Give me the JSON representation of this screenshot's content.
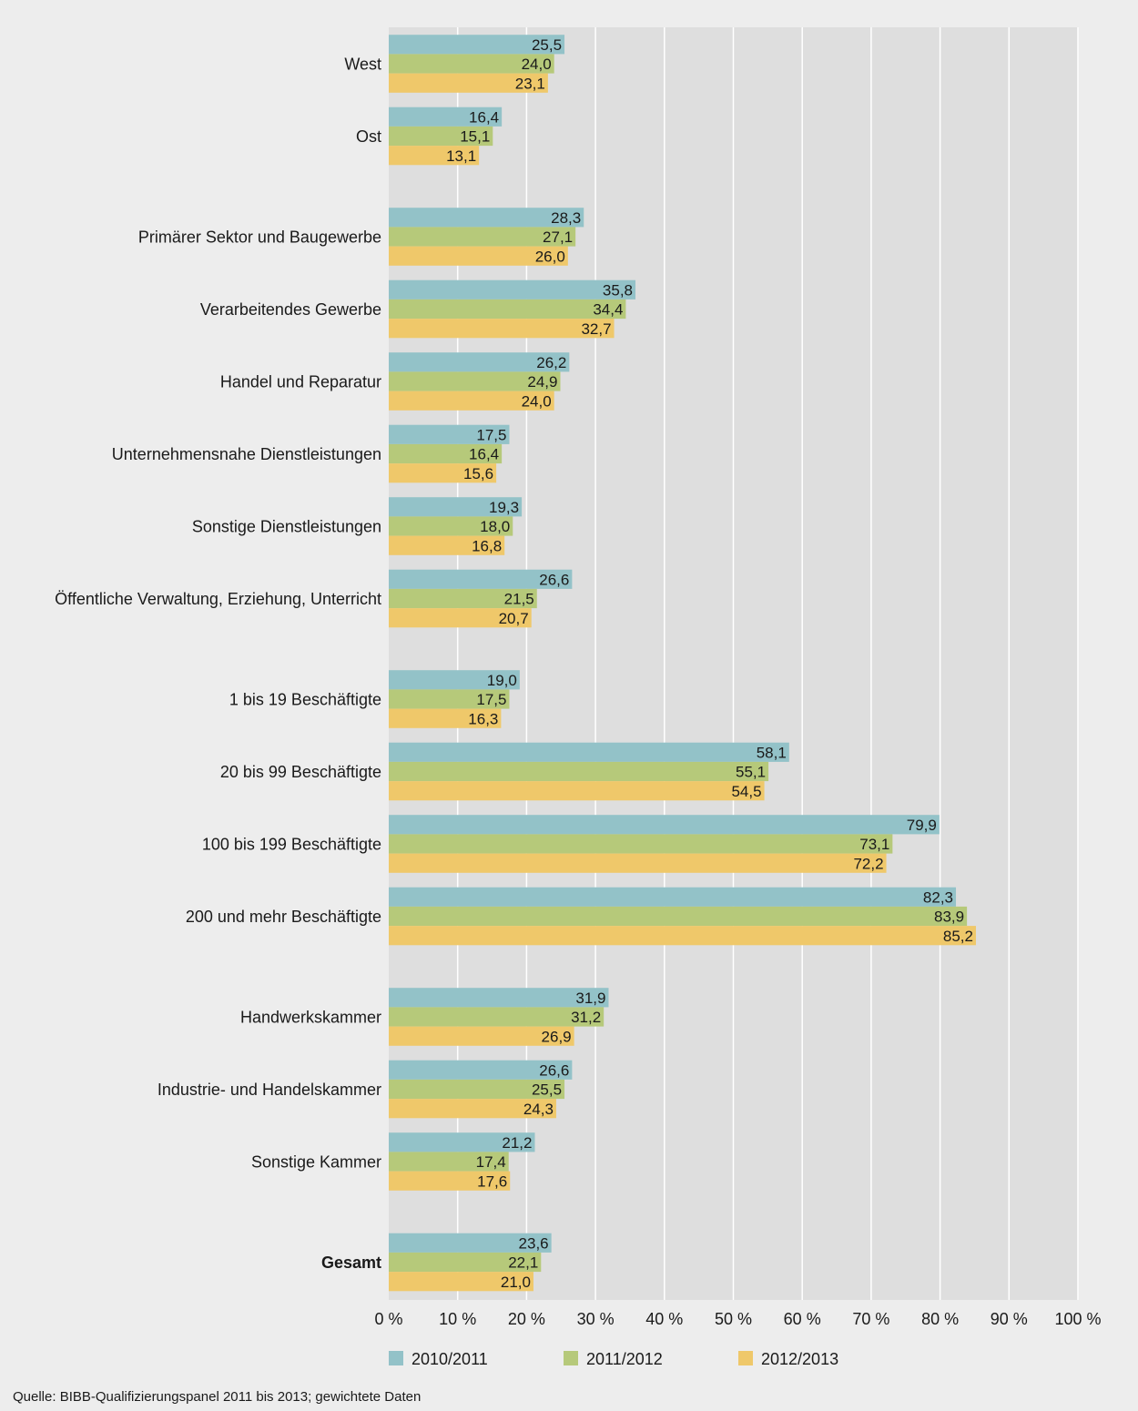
{
  "chart_data": {
    "type": "bar",
    "orientation": "horizontal",
    "title": "",
    "xlabel": "",
    "ylabel": "",
    "xlim": [
      0,
      100
    ],
    "x_ticks": [
      "0 %",
      "10 %",
      "20 %",
      "30 %",
      "40 %",
      "50 %",
      "60 %",
      "70 %",
      "80 %",
      "90 %",
      "100 %"
    ],
    "grid": "vertical",
    "legend_position": "bottom",
    "colors": {
      "plot_background": "#dedede",
      "page_background": "#ededed"
    },
    "groups": [
      [
        "West",
        "Ost"
      ],
      [
        "Primärer Sektor und Baugewerbe",
        "Verarbeitendes Gewerbe",
        "Handel und Reparatur",
        "Unternehmensnahe Dienstleistungen",
        "Sonstige Dienstleistungen",
        "Öffentliche Verwaltung, Erziehung, Unterricht"
      ],
      [
        "1 bis 19 Beschäftigte",
        "20 bis 99 Beschäftigte",
        "100 bis 199 Beschäftigte",
        "200 und mehr Beschäftigte"
      ],
      [
        "Handwerkskammer",
        "Industrie- und Handelskammer",
        "Sonstige Kammer"
      ],
      [
        "Gesamt"
      ]
    ],
    "bold_categories": [
      "Gesamt"
    ],
    "categories": [
      "West",
      "Ost",
      "Primärer Sektor und Baugewerbe",
      "Verarbeitendes Gewerbe",
      "Handel und Reparatur",
      "Unternehmensnahe Dienstleistungen",
      "Sonstige Dienstleistungen",
      "Öffentliche Verwaltung, Erziehung, Unterricht",
      "1 bis 19 Beschäftigte",
      "20 bis 99 Beschäftigte",
      "100 bis 199 Beschäftigte",
      "200 und mehr Beschäftigte",
      "Handwerkskammer",
      "Industrie- und Handelskammer",
      "Sonstige Kammer",
      "Gesamt"
    ],
    "series": [
      {
        "name": "2010/2011",
        "color": "#93c2c8",
        "values": [
          25.5,
          16.4,
          28.3,
          35.8,
          26.2,
          17.5,
          19.3,
          26.6,
          19.0,
          58.1,
          79.9,
          82.3,
          31.9,
          26.6,
          21.2,
          23.6
        ]
      },
      {
        "name": "2011/2012",
        "color": "#b6c97a",
        "values": [
          24.0,
          15.1,
          27.1,
          34.4,
          24.9,
          16.4,
          18.0,
          21.5,
          17.5,
          55.1,
          73.1,
          83.9,
          31.2,
          25.5,
          17.4,
          22.1
        ]
      },
      {
        "name": "2012/2013",
        "color": "#efc86a",
        "values": [
          23.1,
          13.1,
          26.0,
          32.7,
          24.0,
          15.6,
          16.8,
          20.7,
          16.3,
          54.5,
          72.2,
          85.2,
          26.9,
          24.3,
          17.6,
          21.0
        ]
      }
    ]
  },
  "source": "Quelle: BIBB-Qualifizierungspanel 2011 bis 2013; gewichtete Daten"
}
